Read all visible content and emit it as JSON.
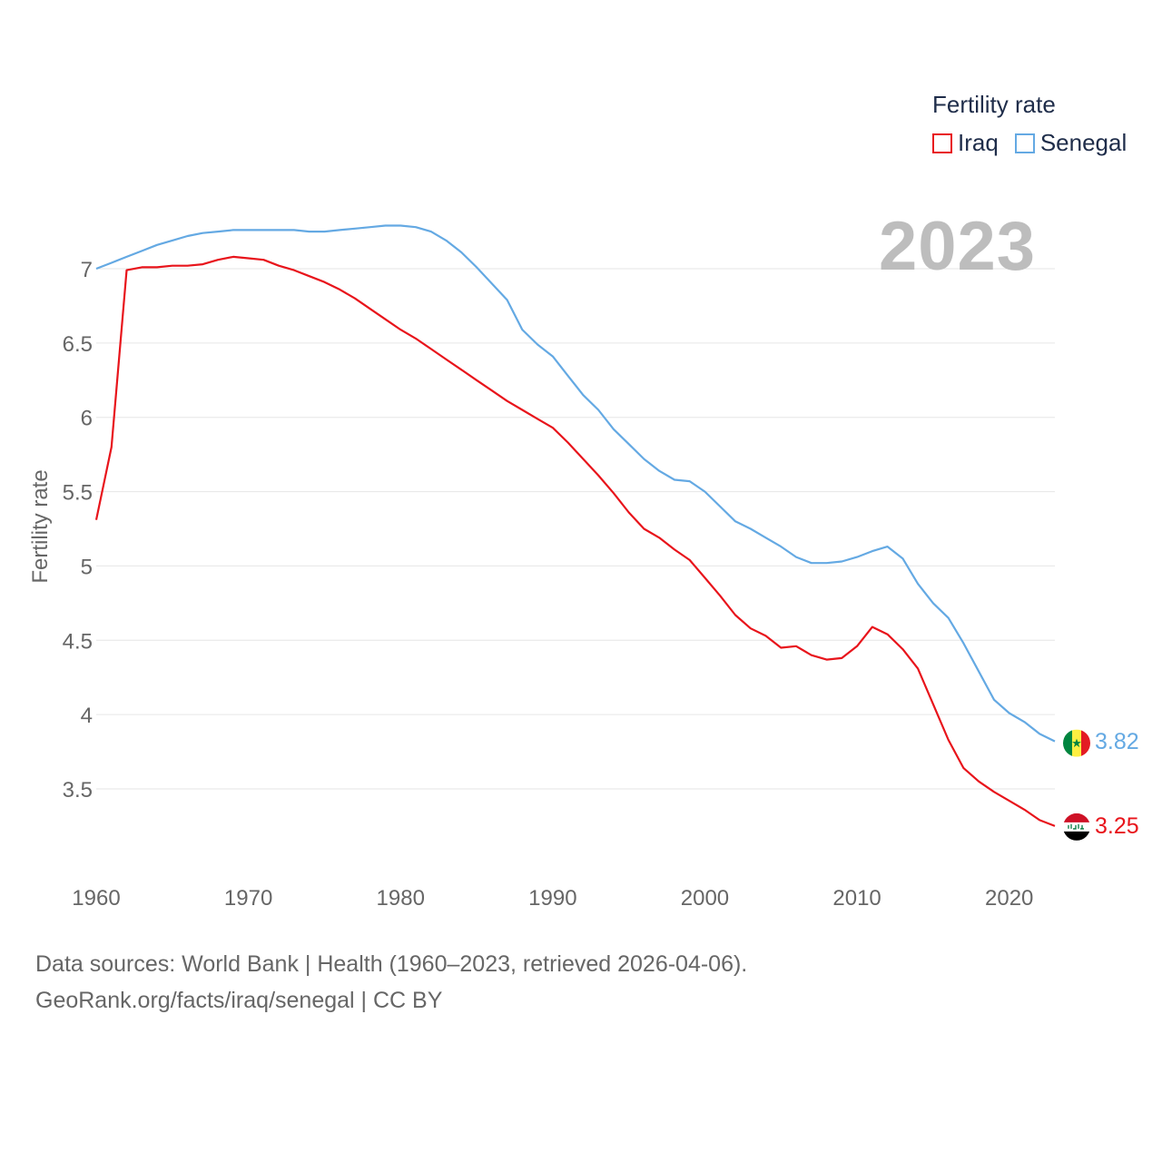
{
  "legend": {
    "title": "Fertility rate",
    "iraq": "Iraq",
    "senegal": "Senegal"
  },
  "year_label": "2023",
  "end_labels": {
    "iraq": "3.25",
    "senegal": "3.82"
  },
  "footer": {
    "line1": "Data sources: World Bank | Health (1960–2023, retrieved 2026-04-06).",
    "line2": "GeoRank.org/facts/iraq/senegal | CC BY"
  },
  "colors": {
    "iraq": "#e8141b",
    "senegal": "#64a9e3",
    "grid": "#e6e6e6",
    "axis_text": "#666666"
  },
  "chart_data": {
    "type": "line",
    "title": "Fertility rate",
    "xlabel": "",
    "ylabel": "Fertility rate",
    "xlim": [
      1960,
      2023
    ],
    "ylim": [
      3.0,
      7.3
    ],
    "x_ticks": [
      1960,
      1970,
      1980,
      1990,
      2000,
      2010,
      2020
    ],
    "y_ticks": [
      3.5,
      4,
      4.5,
      5,
      5.5,
      6,
      6.5,
      7
    ],
    "x_tick_labels": [
      "1960",
      "1970",
      "1980",
      "1990",
      "2000",
      "2010",
      "2020"
    ],
    "y_tick_labels": [
      "3.5",
      "4",
      "4.5",
      "5",
      "5.5",
      "6",
      "6.5",
      "7"
    ],
    "x": [
      1960,
      1961,
      1962,
      1963,
      1964,
      1965,
      1966,
      1967,
      1968,
      1969,
      1970,
      1971,
      1972,
      1973,
      1974,
      1975,
      1976,
      1977,
      1978,
      1979,
      1980,
      1981,
      1982,
      1983,
      1984,
      1985,
      1986,
      1987,
      1988,
      1989,
      1990,
      1991,
      1992,
      1993,
      1994,
      1995,
      1996,
      1997,
      1998,
      1999,
      2000,
      2001,
      2002,
      2003,
      2004,
      2005,
      2006,
      2007,
      2008,
      2009,
      2010,
      2011,
      2012,
      2013,
      2014,
      2015,
      2016,
      2017,
      2018,
      2019,
      2020,
      2021,
      2022,
      2023
    ],
    "series": [
      {
        "name": "Iraq",
        "values": [
          5.31,
          5.8,
          6.99,
          7.01,
          7.01,
          7.02,
          7.02,
          7.03,
          7.06,
          7.08,
          7.07,
          7.06,
          7.02,
          6.99,
          6.95,
          6.91,
          6.86,
          6.8,
          6.73,
          6.66,
          6.59,
          6.53,
          6.46,
          6.39,
          6.32,
          6.25,
          6.18,
          6.11,
          6.05,
          5.99,
          5.93,
          5.83,
          5.72,
          5.61,
          5.49,
          5.36,
          5.25,
          5.19,
          5.11,
          5.04,
          4.92,
          4.8,
          4.67,
          4.58,
          4.53,
          4.45,
          4.46,
          4.4,
          4.37,
          4.38,
          4.46,
          4.59,
          4.54,
          4.44,
          4.31,
          4.07,
          3.83,
          3.64,
          3.55,
          3.48,
          3.42,
          3.36,
          3.29,
          3.25
        ]
      },
      {
        "name": "Senegal",
        "values": [
          7.0,
          7.04,
          7.08,
          7.12,
          7.16,
          7.19,
          7.22,
          7.24,
          7.25,
          7.26,
          7.26,
          7.26,
          7.26,
          7.26,
          7.25,
          7.25,
          7.26,
          7.27,
          7.28,
          7.29,
          7.29,
          7.28,
          7.25,
          7.19,
          7.11,
          7.01,
          6.9,
          6.79,
          6.59,
          6.49,
          6.41,
          6.28,
          6.15,
          6.05,
          5.92,
          5.82,
          5.72,
          5.64,
          5.58,
          5.57,
          5.5,
          5.4,
          5.3,
          5.25,
          5.19,
          5.13,
          5.06,
          5.02,
          5.02,
          5.03,
          5.06,
          5.1,
          5.13,
          5.05,
          4.88,
          4.75,
          4.65,
          4.48,
          4.29,
          4.1,
          4.01,
          3.95,
          3.87,
          3.82
        ]
      }
    ]
  }
}
